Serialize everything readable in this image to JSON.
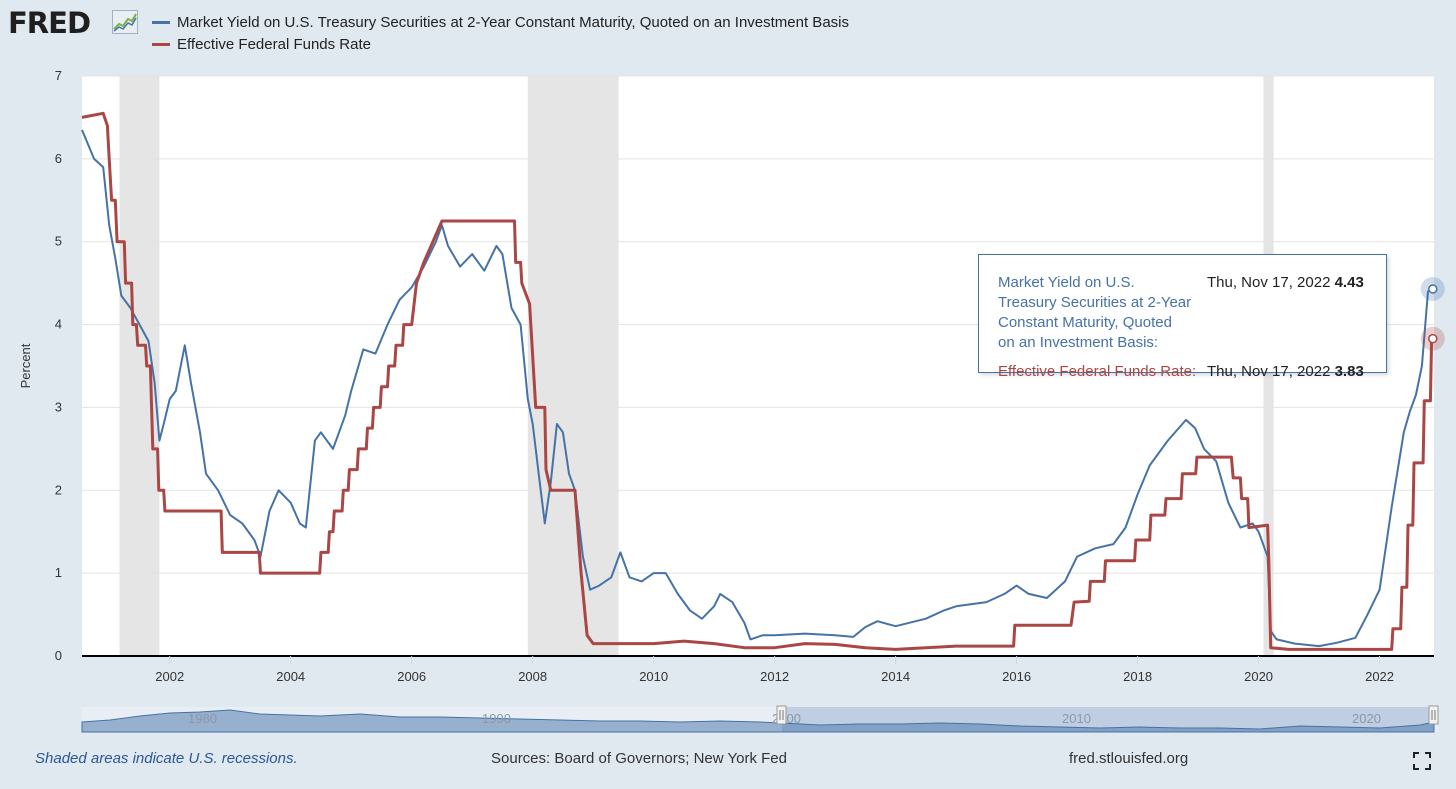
{
  "header": {
    "logo_text": "FRED",
    "logo_icon": "fred-line-chart-icon",
    "legend": [
      {
        "label": "Market Yield on U.S. Treasury Securities at 2-Year Constant Maturity, Quoted on an Investment Basis",
        "color": "#4572a7"
      },
      {
        "label": "Effective Federal Funds Rate",
        "color": "#aa4643"
      }
    ]
  },
  "tooltip": {
    "series1_label": [
      "Market Yield on U.S.",
      "Treasury Securities at 2-Year",
      "Constant Maturity, Quoted",
      "on an Investment Basis:"
    ],
    "series1_date": "Thu, Nov 17, 2022",
    "series1_value": "4.43",
    "series2_label": "Effective Federal Funds Rate:",
    "series2_date": "Thu, Nov 17, 2022",
    "series2_value": "3.83"
  },
  "footer": {
    "note": "Shaded areas indicate U.S. recessions.",
    "sources": "Sources: Board of Governors; New York Fed",
    "site": "fred.stlouisfed.org",
    "fullscreen_icon": "fullscreen-icon"
  },
  "navigator": {
    "labels": [
      "1980",
      "1990",
      "2000",
      "2010",
      "2020"
    ]
  },
  "chart_data": {
    "type": "line",
    "xlabel": "",
    "ylabel": "Percent",
    "xlim": [
      2000.55,
      2022.9
    ],
    "ylim": [
      0,
      7
    ],
    "y_ticks": [
      0,
      1,
      2,
      3,
      4,
      5,
      6,
      7
    ],
    "x_ticks": [
      2002,
      2004,
      2006,
      2008,
      2010,
      2012,
      2014,
      2016,
      2018,
      2020,
      2022
    ],
    "grid": true,
    "legend_position": "top-left",
    "recessions": [
      [
        2001.17,
        2001.83
      ],
      [
        2007.92,
        2009.42
      ],
      [
        2020.08,
        2020.25
      ]
    ],
    "series": [
      {
        "name": "Market Yield on U.S. Treasury Securities at 2-Year Constant Maturity, Quoted on an Investment Basis",
        "color": "#4572a7",
        "points": [
          [
            2000.55,
            6.35
          ],
          [
            2000.75,
            6.0
          ],
          [
            2000.9,
            5.9
          ],
          [
            2001.0,
            5.2
          ],
          [
            2001.1,
            4.8
          ],
          [
            2001.2,
            4.35
          ],
          [
            2001.35,
            4.2
          ],
          [
            2001.5,
            4.0
          ],
          [
            2001.65,
            3.8
          ],
          [
            2001.75,
            3.3
          ],
          [
            2001.83,
            2.6
          ],
          [
            2001.9,
            2.8
          ],
          [
            2002.0,
            3.1
          ],
          [
            2002.1,
            3.2
          ],
          [
            2002.25,
            3.75
          ],
          [
            2002.35,
            3.3
          ],
          [
            2002.5,
            2.7
          ],
          [
            2002.6,
            2.2
          ],
          [
            2002.8,
            2.0
          ],
          [
            2003.0,
            1.7
          ],
          [
            2003.2,
            1.6
          ],
          [
            2003.4,
            1.4
          ],
          [
            2003.5,
            1.2
          ],
          [
            2003.65,
            1.75
          ],
          [
            2003.8,
            2.0
          ],
          [
            2004.0,
            1.85
          ],
          [
            2004.15,
            1.6
          ],
          [
            2004.25,
            1.55
          ],
          [
            2004.4,
            2.6
          ],
          [
            2004.5,
            2.7
          ],
          [
            2004.7,
            2.5
          ],
          [
            2004.9,
            2.9
          ],
          [
            2005.0,
            3.2
          ],
          [
            2005.2,
            3.7
          ],
          [
            2005.4,
            3.65
          ],
          [
            2005.6,
            4.0
          ],
          [
            2005.8,
            4.3
          ],
          [
            2006.0,
            4.45
          ],
          [
            2006.2,
            4.7
          ],
          [
            2006.4,
            5.0
          ],
          [
            2006.5,
            5.2
          ],
          [
            2006.6,
            4.95
          ],
          [
            2006.8,
            4.7
          ],
          [
            2007.0,
            4.85
          ],
          [
            2007.2,
            4.65
          ],
          [
            2007.4,
            4.95
          ],
          [
            2007.5,
            4.85
          ],
          [
            2007.65,
            4.2
          ],
          [
            2007.8,
            4.0
          ],
          [
            2007.92,
            3.1
          ],
          [
            2008.0,
            2.8
          ],
          [
            2008.1,
            2.2
          ],
          [
            2008.2,
            1.6
          ],
          [
            2008.3,
            2.1
          ],
          [
            2008.4,
            2.8
          ],
          [
            2008.5,
            2.7
          ],
          [
            2008.6,
            2.2
          ],
          [
            2008.7,
            2.0
          ],
          [
            2008.83,
            1.2
          ],
          [
            2008.95,
            0.8
          ],
          [
            2009.1,
            0.85
          ],
          [
            2009.3,
            0.95
          ],
          [
            2009.45,
            1.25
          ],
          [
            2009.6,
            0.95
          ],
          [
            2009.8,
            0.9
          ],
          [
            2010.0,
            1.0
          ],
          [
            2010.2,
            1.0
          ],
          [
            2010.4,
            0.75
          ],
          [
            2010.6,
            0.55
          ],
          [
            2010.8,
            0.45
          ],
          [
            2011.0,
            0.6
          ],
          [
            2011.1,
            0.75
          ],
          [
            2011.3,
            0.65
          ],
          [
            2011.5,
            0.4
          ],
          [
            2011.6,
            0.2
          ],
          [
            2011.8,
            0.25
          ],
          [
            2012.0,
            0.25
          ],
          [
            2012.5,
            0.27
          ],
          [
            2013.0,
            0.25
          ],
          [
            2013.3,
            0.23
          ],
          [
            2013.5,
            0.35
          ],
          [
            2013.7,
            0.42
          ],
          [
            2014.0,
            0.36
          ],
          [
            2014.5,
            0.45
          ],
          [
            2014.8,
            0.55
          ],
          [
            2015.0,
            0.6
          ],
          [
            2015.5,
            0.65
          ],
          [
            2015.8,
            0.75
          ],
          [
            2016.0,
            0.85
          ],
          [
            2016.2,
            0.75
          ],
          [
            2016.5,
            0.7
          ],
          [
            2016.8,
            0.9
          ],
          [
            2017.0,
            1.2
          ],
          [
            2017.3,
            1.3
          ],
          [
            2017.6,
            1.35
          ],
          [
            2017.8,
            1.55
          ],
          [
            2018.0,
            1.95
          ],
          [
            2018.2,
            2.3
          ],
          [
            2018.5,
            2.6
          ],
          [
            2018.8,
            2.85
          ],
          [
            2018.95,
            2.75
          ],
          [
            2019.1,
            2.5
          ],
          [
            2019.3,
            2.35
          ],
          [
            2019.5,
            1.85
          ],
          [
            2019.7,
            1.55
          ],
          [
            2019.9,
            1.6
          ],
          [
            2020.0,
            1.5
          ],
          [
            2020.15,
            1.2
          ],
          [
            2020.2,
            0.3
          ],
          [
            2020.3,
            0.2
          ],
          [
            2020.6,
            0.15
          ],
          [
            2021.0,
            0.12
          ],
          [
            2021.3,
            0.16
          ],
          [
            2021.6,
            0.22
          ],
          [
            2021.8,
            0.5
          ],
          [
            2022.0,
            0.8
          ],
          [
            2022.2,
            1.8
          ],
          [
            2022.4,
            2.7
          ],
          [
            2022.5,
            2.95
          ],
          [
            2022.6,
            3.15
          ],
          [
            2022.7,
            3.5
          ],
          [
            2022.8,
            4.4
          ],
          [
            2022.88,
            4.43
          ]
        ]
      },
      {
        "name": "Effective Federal Funds Rate",
        "color": "#aa4643",
        "points": [
          [
            2000.55,
            6.5
          ],
          [
            2000.9,
            6.55
          ],
          [
            2000.97,
            6.4
          ],
          [
            2001.0,
            6.0
          ],
          [
            2001.04,
            5.5
          ],
          [
            2001.1,
            5.5
          ],
          [
            2001.13,
            5.0
          ],
          [
            2001.25,
            5.0
          ],
          [
            2001.27,
            4.5
          ],
          [
            2001.37,
            4.5
          ],
          [
            2001.39,
            4.0
          ],
          [
            2001.45,
            4.0
          ],
          [
            2001.47,
            3.75
          ],
          [
            2001.6,
            3.75
          ],
          [
            2001.62,
            3.5
          ],
          [
            2001.68,
            3.5
          ],
          [
            2001.7,
            3.0
          ],
          [
            2001.72,
            2.5
          ],
          [
            2001.8,
            2.5
          ],
          [
            2001.82,
            2.0
          ],
          [
            2001.9,
            2.0
          ],
          [
            2001.92,
            1.75
          ],
          [
            2002.85,
            1.75
          ],
          [
            2002.87,
            1.25
          ],
          [
            2003.48,
            1.25
          ],
          [
            2003.5,
            1.0
          ],
          [
            2004.48,
            1.0
          ],
          [
            2004.5,
            1.25
          ],
          [
            2004.62,
            1.25
          ],
          [
            2004.64,
            1.5
          ],
          [
            2004.7,
            1.5
          ],
          [
            2004.72,
            1.75
          ],
          [
            2004.85,
            1.75
          ],
          [
            2004.87,
            2.0
          ],
          [
            2004.95,
            2.0
          ],
          [
            2004.97,
            2.25
          ],
          [
            2005.1,
            2.25
          ],
          [
            2005.12,
            2.5
          ],
          [
            2005.25,
            2.5
          ],
          [
            2005.27,
            2.75
          ],
          [
            2005.35,
            2.75
          ],
          [
            2005.37,
            3.0
          ],
          [
            2005.48,
            3.0
          ],
          [
            2005.5,
            3.25
          ],
          [
            2005.6,
            3.25
          ],
          [
            2005.62,
            3.5
          ],
          [
            2005.72,
            3.5
          ],
          [
            2005.74,
            3.75
          ],
          [
            2005.85,
            3.75
          ],
          [
            2005.87,
            4.0
          ],
          [
            2006.0,
            4.0
          ],
          [
            2006.08,
            4.5
          ],
          [
            2006.2,
            4.75
          ],
          [
            2006.35,
            5.0
          ],
          [
            2006.5,
            5.25
          ],
          [
            2007.7,
            5.25
          ],
          [
            2007.72,
            4.75
          ],
          [
            2007.8,
            4.75
          ],
          [
            2007.82,
            4.5
          ],
          [
            2007.95,
            4.25
          ],
          [
            2008.05,
            3.0
          ],
          [
            2008.2,
            3.0
          ],
          [
            2008.22,
            2.25
          ],
          [
            2008.3,
            2.0
          ],
          [
            2008.7,
            2.0
          ],
          [
            2008.75,
            1.5
          ],
          [
            2008.8,
            1.0
          ],
          [
            2008.9,
            0.25
          ],
          [
            2009.0,
            0.15
          ],
          [
            2010.0,
            0.15
          ],
          [
            2010.5,
            0.18
          ],
          [
            2011.0,
            0.15
          ],
          [
            2011.5,
            0.1
          ],
          [
            2012.0,
            0.1
          ],
          [
            2012.5,
            0.15
          ],
          [
            2013.0,
            0.14
          ],
          [
            2013.5,
            0.1
          ],
          [
            2014.0,
            0.08
          ],
          [
            2015.0,
            0.12
          ],
          [
            2015.95,
            0.12
          ],
          [
            2015.97,
            0.37
          ],
          [
            2016.9,
            0.37
          ],
          [
            2016.95,
            0.65
          ],
          [
            2017.2,
            0.66
          ],
          [
            2017.22,
            0.9
          ],
          [
            2017.45,
            0.9
          ],
          [
            2017.47,
            1.15
          ],
          [
            2017.95,
            1.15
          ],
          [
            2017.97,
            1.4
          ],
          [
            2018.2,
            1.4
          ],
          [
            2018.22,
            1.7
          ],
          [
            2018.45,
            1.7
          ],
          [
            2018.47,
            1.9
          ],
          [
            2018.72,
            1.9
          ],
          [
            2018.74,
            2.2
          ],
          [
            2018.96,
            2.2
          ],
          [
            2018.98,
            2.4
          ],
          [
            2019.55,
            2.4
          ],
          [
            2019.58,
            2.15
          ],
          [
            2019.7,
            2.15
          ],
          [
            2019.72,
            1.9
          ],
          [
            2019.82,
            1.9
          ],
          [
            2019.84,
            1.55
          ],
          [
            2020.15,
            1.58
          ],
          [
            2020.17,
            1.1
          ],
          [
            2020.2,
            0.1
          ],
          [
            2020.5,
            0.08
          ],
          [
            2021.0,
            0.08
          ],
          [
            2022.2,
            0.08
          ],
          [
            2022.22,
            0.33
          ],
          [
            2022.35,
            0.33
          ],
          [
            2022.37,
            0.83
          ],
          [
            2022.45,
            0.83
          ],
          [
            2022.47,
            1.58
          ],
          [
            2022.55,
            1.58
          ],
          [
            2022.57,
            2.33
          ],
          [
            2022.72,
            2.33
          ],
          [
            2022.74,
            3.08
          ],
          [
            2022.84,
            3.08
          ],
          [
            2022.86,
            3.83
          ],
          [
            2022.88,
            3.83
          ]
        ]
      }
    ]
  }
}
